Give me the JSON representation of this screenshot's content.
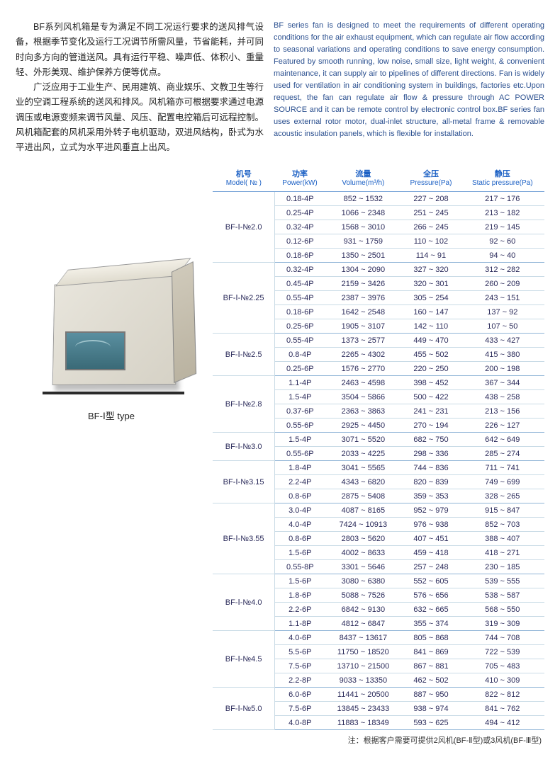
{
  "intro": {
    "cn_p1": "BF系列风机箱是专为满足不同工况运行要求的送风排气设备，根据季节变化及运行工况调节所需风量，节省能耗，并可同时向多方向的管道送风。具有运行平稳、噪声低、体积小、重量轻、外形美观、维护保养方便等优点。",
    "cn_p2": "广泛应用于工业生产、民用建筑、商业娱乐、文教卫生等行业的空调工程系统的送风和排风。风机箱亦可根据要求通过电源调压或电源变频来调节风量、风压、配置电控箱后可远程控制。风机箱配套的风机采用外转子电机驱动，双进风结构，卧式为水平进出风，立式为水平进风垂直上出风。",
    "en": "BF series fan is designed to meet the requirements of different operating conditions for the air exhaust equipment, which can regulate air flow according to seasonal variations and operating conditions to save energy consumption. Featured by smooth running, low noise, small size, light weight, & convenient maintenance, it can supply air to pipelines of different directions. Fan is widely used for ventilation in air conditioning system in buildings, factories etc.Upon request, the fan can regulate air flow & pressure through AC POWER SOURCE and it can be remote control by electronic control box.BF series fan uses external rotor motor, dual-inlet structure, all-metal frame & removable acoustic insulation panels, which is flexible for installation."
  },
  "image_caption": "BF-Ⅰ型 type",
  "table": {
    "headers": [
      {
        "cn": "机号",
        "en": "Model( № )"
      },
      {
        "cn": "功率",
        "en": "Power(kW)"
      },
      {
        "cn": "流量",
        "en": "Volume(m³/h)"
      },
      {
        "cn": "全压",
        "en": "Pressure(Pa)"
      },
      {
        "cn": "静压",
        "en": "Static pressure(Pa)"
      }
    ],
    "groups": [
      {
        "model": "BF-Ⅰ-№2.0",
        "rows": [
          {
            "power": "0.18-4P",
            "vol": "852 ~ 1532",
            "press": "227 ~ 208",
            "sp": "217 ~ 176"
          },
          {
            "power": "0.25-4P",
            "vol": "1066 ~ 2348",
            "press": "251 ~ 245",
            "sp": "213 ~ 182"
          },
          {
            "power": "0.32-4P",
            "vol": "1568 ~ 3010",
            "press": "266 ~ 245",
            "sp": "219 ~ 145"
          },
          {
            "power": "0.12-6P",
            "vol": "931 ~ 1759",
            "press": "110 ~ 102",
            "sp": "92 ~ 60"
          },
          {
            "power": "0.18-6P",
            "vol": "1350 ~ 2501",
            "press": "114 ~ 91",
            "sp": "94 ~ 40"
          }
        ]
      },
      {
        "model": "BF-Ⅰ-№2.25",
        "rows": [
          {
            "power": "0.32-4P",
            "vol": "1304 ~ 2090",
            "press": "327 ~ 320",
            "sp": "312 ~ 282"
          },
          {
            "power": "0.45-4P",
            "vol": "2159 ~ 3426",
            "press": "320 ~ 301",
            "sp": "260 ~ 209"
          },
          {
            "power": "0.55-4P",
            "vol": "2387 ~ 3976",
            "press": "305 ~ 254",
            "sp": "243 ~ 151"
          },
          {
            "power": "0.18-6P",
            "vol": "1642 ~ 2548",
            "press": "160 ~ 147",
            "sp": "137 ~ 92"
          },
          {
            "power": "0.25-6P",
            "vol": "1905 ~ 3107",
            "press": "142 ~ 110",
            "sp": "107 ~ 50"
          }
        ]
      },
      {
        "model": "BF-Ⅰ-№2.5",
        "rows": [
          {
            "power": "0.55-4P",
            "vol": "1373 ~ 2577",
            "press": "449 ~ 470",
            "sp": "433 ~ 427"
          },
          {
            "power": "0.8-4P",
            "vol": "2265 ~ 4302",
            "press": "455 ~ 502",
            "sp": "415 ~ 380"
          },
          {
            "power": "0.25-6P",
            "vol": "1576 ~ 2770",
            "press": "220 ~ 250",
            "sp": "200 ~ 198"
          }
        ]
      },
      {
        "model": "BF-Ⅰ-№2.8",
        "rows": [
          {
            "power": "1.1-4P",
            "vol": "2463 ~ 4598",
            "press": "398 ~ 452",
            "sp": "367 ~ 344"
          },
          {
            "power": "1.5-4P",
            "vol": "3504 ~ 5866",
            "press": "500 ~ 422",
            "sp": "438 ~ 258"
          },
          {
            "power": "0.37-6P",
            "vol": "2363 ~ 3863",
            "press": "241 ~ 231",
            "sp": "213 ~ 156"
          },
          {
            "power": "0.55-6P",
            "vol": "2925 ~ 4450",
            "press": "270 ~ 194",
            "sp": "226 ~ 127"
          }
        ]
      },
      {
        "model": "BF-Ⅰ-№3.0",
        "rows": [
          {
            "power": "1.5-4P",
            "vol": "3071 ~ 5520",
            "press": "682 ~ 750",
            "sp": "642 ~ 649"
          },
          {
            "power": "0.55-6P",
            "vol": "2033 ~ 4225",
            "press": "298 ~ 336",
            "sp": "285 ~ 274"
          }
        ]
      },
      {
        "model": "BF-Ⅰ-№3.15",
        "rows": [
          {
            "power": "1.8-4P",
            "vol": "3041 ~ 5565",
            "press": "744 ~ 836",
            "sp": "711 ~ 741"
          },
          {
            "power": "2.2-4P",
            "vol": "4343 ~ 6820",
            "press": "820 ~ 839",
            "sp": "749 ~ 699"
          },
          {
            "power": "0.8-6P",
            "vol": "2875 ~ 5408",
            "press": "359 ~ 353",
            "sp": "328 ~ 265"
          }
        ]
      },
      {
        "model": "BF-Ⅰ-№3.55",
        "rows": [
          {
            "power": "3.0-4P",
            "vol": "4087 ~ 8165",
            "press": "952 ~ 979",
            "sp": "915 ~ 847"
          },
          {
            "power": "4.0-4P",
            "vol": "7424 ~ 10913",
            "press": "976 ~ 938",
            "sp": "852 ~ 703"
          },
          {
            "power": "0.8-6P",
            "vol": "2803 ~ 5620",
            "press": "407 ~ 451",
            "sp": "388 ~ 407"
          },
          {
            "power": "1.5-6P",
            "vol": "4002 ~ 8633",
            "press": "459 ~ 418",
            "sp": "418 ~ 271"
          },
          {
            "power": "0.55-8P",
            "vol": "3301 ~ 5646",
            "press": "257 ~ 248",
            "sp": "230 ~ 185"
          }
        ]
      },
      {
        "model": "BF-Ⅰ-№4.0",
        "rows": [
          {
            "power": "1.5-6P",
            "vol": "3080 ~ 6380",
            "press": "552 ~ 605",
            "sp": "539 ~ 555"
          },
          {
            "power": "1.8-6P",
            "vol": "5088 ~ 7526",
            "press": "576 ~ 656",
            "sp": "538 ~ 587"
          },
          {
            "power": "2.2-6P",
            "vol": "6842 ~ 9130",
            "press": "632 ~ 665",
            "sp": "568 ~ 550"
          },
          {
            "power": "1.1-8P",
            "vol": "4812 ~ 6847",
            "press": "355 ~ 374",
            "sp": "319 ~ 309"
          }
        ]
      },
      {
        "model": "BF-Ⅰ-№4.5",
        "rows": [
          {
            "power": "4.0-6P",
            "vol": "8437 ~ 13617",
            "press": "805 ~ 868",
            "sp": "744 ~ 708"
          },
          {
            "power": "5.5-6P",
            "vol": "11750 ~ 18520",
            "press": "841 ~ 869",
            "sp": "722 ~ 539"
          },
          {
            "power": "7.5-6P",
            "vol": "13710 ~ 21500",
            "press": "867 ~ 881",
            "sp": "705 ~ 483"
          },
          {
            "power": "2.2-8P",
            "vol": "9033 ~ 13350",
            "press": "462 ~ 502",
            "sp": "410 ~ 309"
          }
        ]
      },
      {
        "model": "BF-Ⅰ-№5.0",
        "rows": [
          {
            "power": "6.0-6P",
            "vol": "11441 ~ 20500",
            "press": "887 ~ 950",
            "sp": "822 ~ 812"
          },
          {
            "power": "7.5-6P",
            "vol": "13845 ~ 23433",
            "press": "938 ~ 974",
            "sp": "841 ~ 762"
          },
          {
            "power": "4.0-8P",
            "vol": "11883 ~ 18349",
            "press": "593 ~ 625",
            "sp": "494 ~ 412"
          }
        ]
      }
    ]
  },
  "footnote": "注：根据客户需要可提供2风机(BF-Ⅱ型)或3风机(BF-Ⅲ型)",
  "colors": {
    "header": "#1a5fc4",
    "border": "#c9dbe6",
    "text": "#2a2a5a"
  }
}
